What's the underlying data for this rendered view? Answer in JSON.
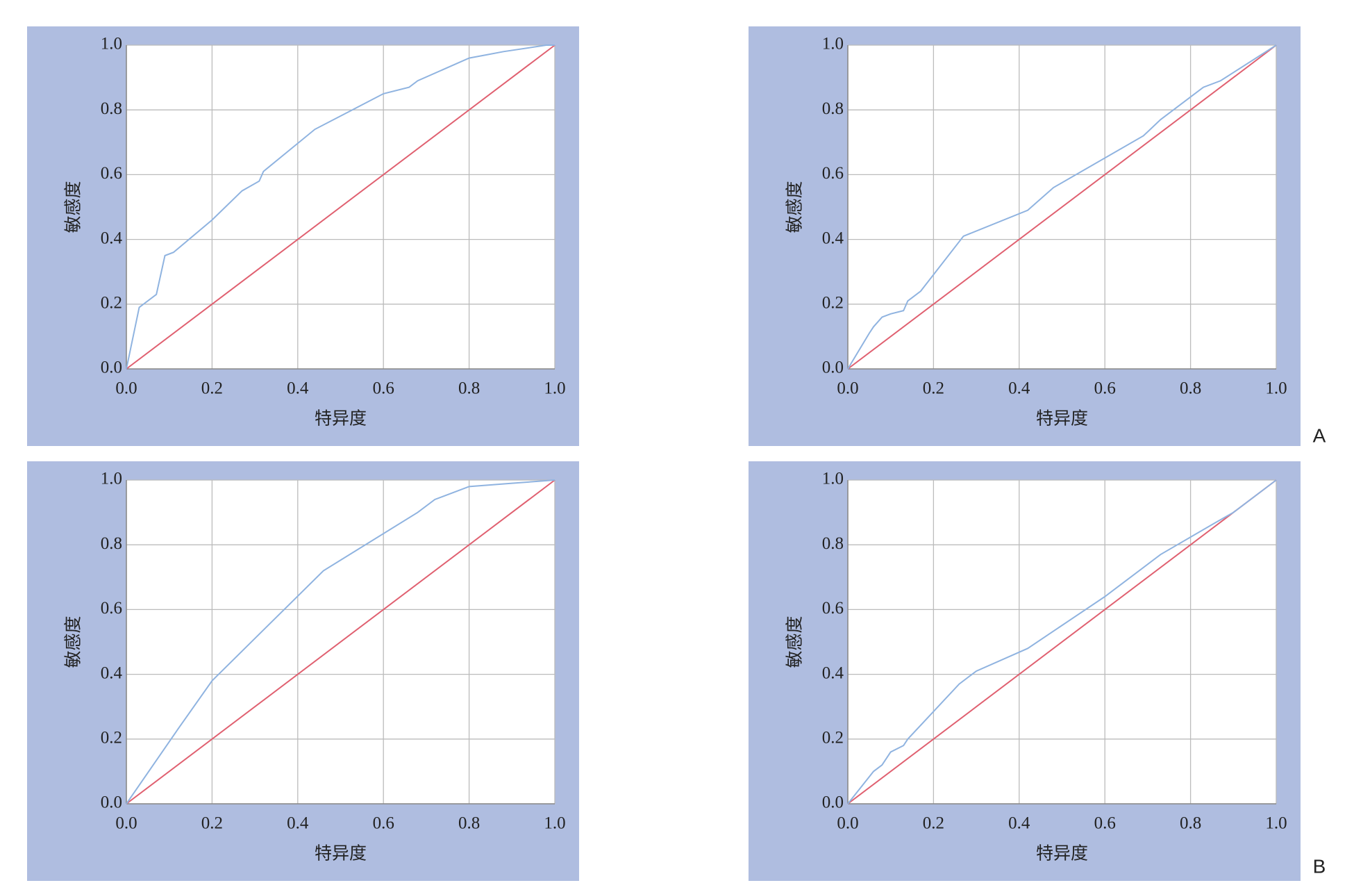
{
  "chart_data": [
    {
      "type": "line",
      "xlabel": "特异度",
      "ylabel": "敏感度",
      "xlim": [
        0,
        1
      ],
      "ylim": [
        0,
        1
      ],
      "xticks": [
        {
          "value": 0,
          "label": "0.0"
        },
        {
          "value": 0.2,
          "label": "0.2"
        },
        {
          "value": 0.4,
          "label": "0.4"
        },
        {
          "value": 0.6,
          "label": "0.6"
        },
        {
          "value": 0.8,
          "label": "0.8"
        },
        {
          "value": 1,
          "label": "1.0"
        }
      ],
      "yticks": [
        {
          "value": 0,
          "label": "0.0"
        },
        {
          "value": 0.2,
          "label": "0.2"
        },
        {
          "value": 0.4,
          "label": "0.4"
        },
        {
          "value": 0.6,
          "label": "0.6"
        },
        {
          "value": 0.8,
          "label": "0.8"
        },
        {
          "value": 1,
          "label": "1.0"
        }
      ],
      "grid": true,
      "series": [
        {
          "color": "#8fb3e0",
          "x": [
            0,
            0.03,
            0.07,
            0.09,
            0.11,
            0.2,
            0.27,
            0.31,
            0.32,
            0.44,
            0.6,
            0.66,
            0.68,
            0.8,
            0.84,
            0.88,
            0.98,
            1
          ],
          "values": [
            0,
            0.19,
            0.23,
            0.35,
            0.36,
            0.46,
            0.55,
            0.58,
            0.61,
            0.74,
            0.85,
            0.87,
            0.89,
            0.96,
            0.97,
            0.98,
            1,
            1
          ]
        },
        {
          "color": "#e06070",
          "x": [
            0,
            1
          ],
          "values": [
            0,
            1
          ]
        }
      ]
    },
    {
      "type": "line",
      "xlabel": "特异度",
      "ylabel": "敏感度",
      "xlim": [
        0,
        1
      ],
      "ylim": [
        0,
        1
      ],
      "xticks": [
        {
          "value": 0,
          "label": "0.0"
        },
        {
          "value": 0.2,
          "label": "0.2"
        },
        {
          "value": 0.4,
          "label": "0.4"
        },
        {
          "value": 0.6,
          "label": "0.6"
        },
        {
          "value": 0.8,
          "label": "0.8"
        },
        {
          "value": 1,
          "label": "1.0"
        }
      ],
      "yticks": [
        {
          "value": 0,
          "label": "0.0"
        },
        {
          "value": 0.2,
          "label": "0.2"
        },
        {
          "value": 0.4,
          "label": "0.4"
        },
        {
          "value": 0.6,
          "label": "0.6"
        },
        {
          "value": 0.8,
          "label": "0.8"
        },
        {
          "value": 1,
          "label": "1.0"
        }
      ],
      "grid": true,
      "series": [
        {
          "color": "#8fb3e0",
          "x": [
            0,
            0.05,
            0.06,
            0.08,
            0.1,
            0.13,
            0.14,
            0.17,
            0.27,
            0.42,
            0.48,
            0.69,
            0.73,
            0.83,
            0.87,
            1
          ],
          "values": [
            0,
            0.11,
            0.13,
            0.16,
            0.17,
            0.18,
            0.21,
            0.24,
            0.41,
            0.49,
            0.56,
            0.72,
            0.77,
            0.87,
            0.89,
            1
          ]
        },
        {
          "color": "#e06070",
          "x": [
            0,
            1
          ],
          "values": [
            0,
            1
          ]
        }
      ]
    },
    {
      "type": "line",
      "xlabel": "特异度",
      "ylabel": "敏感度",
      "xlim": [
        0,
        1
      ],
      "ylim": [
        0,
        1
      ],
      "xticks": [
        {
          "value": 0,
          "label": "0.0"
        },
        {
          "value": 0.2,
          "label": "0.2"
        },
        {
          "value": 0.4,
          "label": "0.4"
        },
        {
          "value": 0.6,
          "label": "0.6"
        },
        {
          "value": 0.8,
          "label": "0.8"
        },
        {
          "value": 1,
          "label": "1.0"
        }
      ],
      "yticks": [
        {
          "value": 0,
          "label": "0.0"
        },
        {
          "value": 0.2,
          "label": "0.2"
        },
        {
          "value": 0.4,
          "label": "0.4"
        },
        {
          "value": 0.6,
          "label": "0.6"
        },
        {
          "value": 0.8,
          "label": "0.8"
        },
        {
          "value": 1,
          "label": "1.0"
        }
      ],
      "grid": true,
      "series": [
        {
          "color": "#8fb3e0",
          "x": [
            0,
            0.12,
            0.2,
            0.46,
            0.68,
            0.72,
            0.76,
            0.8,
            0.9,
            1
          ],
          "values": [
            0,
            0.23,
            0.38,
            0.72,
            0.9,
            0.94,
            0.96,
            0.98,
            0.99,
            1
          ]
        },
        {
          "color": "#e06070",
          "x": [
            0,
            1
          ],
          "values": [
            0,
            1
          ]
        }
      ]
    },
    {
      "type": "line",
      "xlabel": "特异度",
      "ylabel": "敏感度",
      "xlim": [
        0,
        1
      ],
      "ylim": [
        0,
        1
      ],
      "xticks": [
        {
          "value": 0,
          "label": "0.0"
        },
        {
          "value": 0.2,
          "label": "0.2"
        },
        {
          "value": 0.4,
          "label": "0.4"
        },
        {
          "value": 0.6,
          "label": "0.6"
        },
        {
          "value": 0.8,
          "label": "0.8"
        },
        {
          "value": 1,
          "label": "1.0"
        }
      ],
      "yticks": [
        {
          "value": 0,
          "label": "0.0"
        },
        {
          "value": 0.2,
          "label": "0.2"
        },
        {
          "value": 0.4,
          "label": "0.4"
        },
        {
          "value": 0.6,
          "label": "0.6"
        },
        {
          "value": 0.8,
          "label": "0.8"
        },
        {
          "value": 1,
          "label": "1.0"
        }
      ],
      "grid": true,
      "series": [
        {
          "color": "#8fb3e0",
          "x": [
            0,
            0.06,
            0.08,
            0.1,
            0.13,
            0.14,
            0.26,
            0.3,
            0.42,
            0.6,
            0.62,
            0.67,
            0.73,
            0.86,
            0.9,
            1
          ],
          "values": [
            0,
            0.1,
            0.12,
            0.16,
            0.18,
            0.2,
            0.37,
            0.41,
            0.48,
            0.64,
            0.66,
            0.71,
            0.77,
            0.87,
            0.9,
            1
          ]
        },
        {
          "color": "#e06070",
          "x": [
            0,
            1
          ],
          "values": [
            0,
            1
          ]
        }
      ]
    }
  ],
  "panel_labels": [
    "A",
    "B"
  ]
}
